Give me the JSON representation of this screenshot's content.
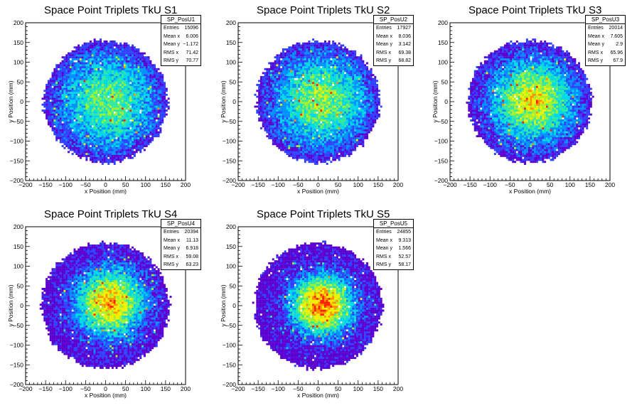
{
  "chart_data": [
    {
      "type": "heatmap",
      "title": "Space Point Triplets TkU S1",
      "xlabel": "x Position (mm)",
      "ylabel": "y Position (mm)",
      "xlim": [
        -200,
        200
      ],
      "ylim": [
        -200,
        200
      ],
      "xticks": [
        "−200",
        "−150",
        "−100",
        "−50",
        "0",
        "50",
        "100",
        "150",
        "200"
      ],
      "yticks": [
        "−200",
        "−150",
        "−100",
        "−50",
        "0",
        "50",
        "100",
        "150",
        "200"
      ],
      "distribution": {
        "radius": 155,
        "center": [
          6.0,
          -1.2
        ],
        "sigma": 90,
        "max_level": 0.55
      },
      "stats": {
        "name": "SP_PosU1",
        "rows": [
          {
            "label": "Entries",
            "value": "15096"
          },
          {
            "label": "Mean x",
            "value": "6.006"
          },
          {
            "label": "Mean y",
            "value": "−1.172"
          },
          {
            "label": "RMS x",
            "value": "71.42"
          },
          {
            "label": "RMS y",
            "value": "70.77"
          }
        ]
      }
    },
    {
      "type": "heatmap",
      "title": "Space Point Triplets TkU S2",
      "xlabel": "x Position (mm)",
      "ylabel": "y Position (mm)",
      "xlim": [
        -200,
        200
      ],
      "ylim": [
        -200,
        200
      ],
      "xticks": [
        "−200",
        "−150",
        "−100",
        "−50",
        "0",
        "50",
        "100",
        "150",
        "200"
      ],
      "yticks": [
        "−200",
        "−150",
        "−100",
        "−50",
        "0",
        "50",
        "100",
        "150",
        "200"
      ],
      "distribution": {
        "radius": 155,
        "center": [
          8.0,
          3.1
        ],
        "sigma": 85,
        "max_level": 0.6
      },
      "stats": {
        "name": "SP_PosU2",
        "rows": [
          {
            "label": "Entries",
            "value": "17927"
          },
          {
            "label": "Mean x",
            "value": "8.036"
          },
          {
            "label": "Mean y",
            "value": "3.142"
          },
          {
            "label": "RMS x",
            "value": "69.38"
          },
          {
            "label": "RMS y",
            "value": "68.82"
          }
        ]
      }
    },
    {
      "type": "heatmap",
      "title": "Space Point Triplets TkU S3",
      "xlabel": "x Position (mm)",
      "ylabel": "y Position (mm)",
      "xticks": [
        "−200",
        "−150",
        "−100",
        "−50",
        "0",
        "50",
        "100",
        "150",
        "200"
      ],
      "yticks": [
        "−200",
        "−150",
        "−100",
        "−50",
        "0",
        "50",
        "100",
        "150",
        "200"
      ],
      "xlim": [
        -200,
        200
      ],
      "ylim": [
        -200,
        200
      ],
      "distribution": {
        "radius": 155,
        "center": [
          7.6,
          2.9
        ],
        "sigma": 75,
        "max_level": 0.72
      },
      "stats": {
        "name": "SP_PosU3",
        "rows": [
          {
            "label": "Entries",
            "value": "20014"
          },
          {
            "label": "Mean x",
            "value": "7.605"
          },
          {
            "label": "Mean y",
            "value": "2.9"
          },
          {
            "label": "RMS x",
            "value": "65.96"
          },
          {
            "label": "RMS y",
            "value": "67.9"
          }
        ]
      }
    },
    {
      "type": "heatmap",
      "title": "Space Point Triplets TkU S4",
      "xlabel": "x Position (mm)",
      "ylabel": "y Position (mm)",
      "xticks": [
        "−200",
        "−150",
        "−100",
        "−50",
        "0",
        "50",
        "100",
        "150",
        "200"
      ],
      "yticks": [
        "−200",
        "−150",
        "−100",
        "−50",
        "0",
        "50",
        "100",
        "150",
        "200"
      ],
      "xlim": [
        -200,
        200
      ],
      "ylim": [
        -200,
        200
      ],
      "distribution": {
        "radius": 160,
        "center": [
          11.1,
          6.9
        ],
        "sigma": 62,
        "max_level": 0.8
      },
      "stats": {
        "name": "SP_PosU4",
        "rows": [
          {
            "label": "Entries",
            "value": "20394"
          },
          {
            "label": "Mean x",
            "value": "11.13"
          },
          {
            "label": "Mean y",
            "value": "6.918"
          },
          {
            "label": "RMS x",
            "value": "59.08"
          },
          {
            "label": "RMS y",
            "value": "63.23"
          }
        ]
      }
    },
    {
      "type": "heatmap",
      "title": "Space Point Triplets TkU S5",
      "xlabel": "x Position (mm)",
      "ylabel": "y Position (mm)",
      "xticks": [
        "−200",
        "−150",
        "−100",
        "−50",
        "0",
        "50",
        "100",
        "150",
        "200"
      ],
      "yticks": [
        "−200",
        "−150",
        "−100",
        "−50",
        "0",
        "50",
        "100",
        "150",
        "200"
      ],
      "xlim": [
        -200,
        200
      ],
      "ylim": [
        -200,
        200
      ],
      "distribution": {
        "radius": 160,
        "center": [
          9.3,
          1.6
        ],
        "sigma": 55,
        "max_level": 0.9
      },
      "stats": {
        "name": "SP_PosU5",
        "rows": [
          {
            "label": "Entries",
            "value": "24855"
          },
          {
            "label": "Mean x",
            "value": "9.313"
          },
          {
            "label": "Mean y",
            "value": "1.566"
          },
          {
            "label": "RMS x",
            "value": "52.57"
          },
          {
            "label": "RMS y",
            "value": "58.17"
          }
        ]
      }
    }
  ],
  "palette": [
    "#5a00d0",
    "#3040ff",
    "#0090ff",
    "#00d8e8",
    "#30e8a0",
    "#a0f030",
    "#f0f000",
    "#ff9000",
    "#ff2000"
  ]
}
